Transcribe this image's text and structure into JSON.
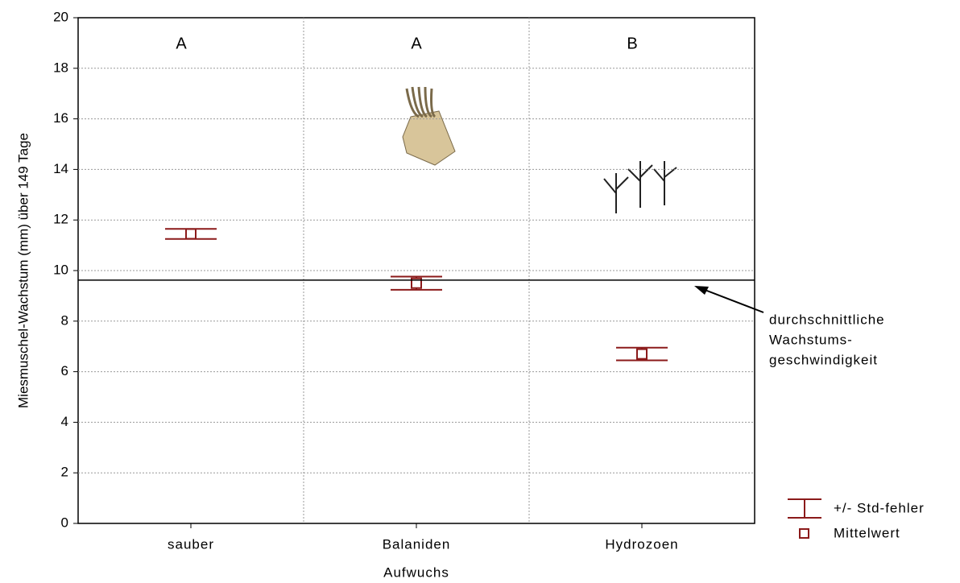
{
  "chart_data": {
    "type": "errorbar",
    "y_label": "Miesmuschel-Wachstum (mm) über 149 Tage",
    "x_label": "Aufwuchs",
    "categories": [
      "sauber",
      "Balaniden",
      "Hydrozoen"
    ],
    "series": [
      {
        "name": "Mittelwert",
        "error_name": "+/- Std-fehler",
        "color": "#8b1a1a",
        "values": [
          11.45,
          9.5,
          6.7
        ],
        "errors": [
          0.2,
          0.26,
          0.25
        ]
      }
    ],
    "group_labels": [
      "A",
      "A",
      "B"
    ],
    "reference_line": {
      "value": 9.62,
      "label": [
        "durchschnittliche",
        "Wachstums-",
        "geschwindigkeit"
      ]
    },
    "ylim": [
      0,
      20
    ],
    "yticks": [
      0,
      2,
      4,
      6,
      8,
      10,
      12,
      14,
      16,
      18,
      20
    ],
    "grid": true
  }
}
